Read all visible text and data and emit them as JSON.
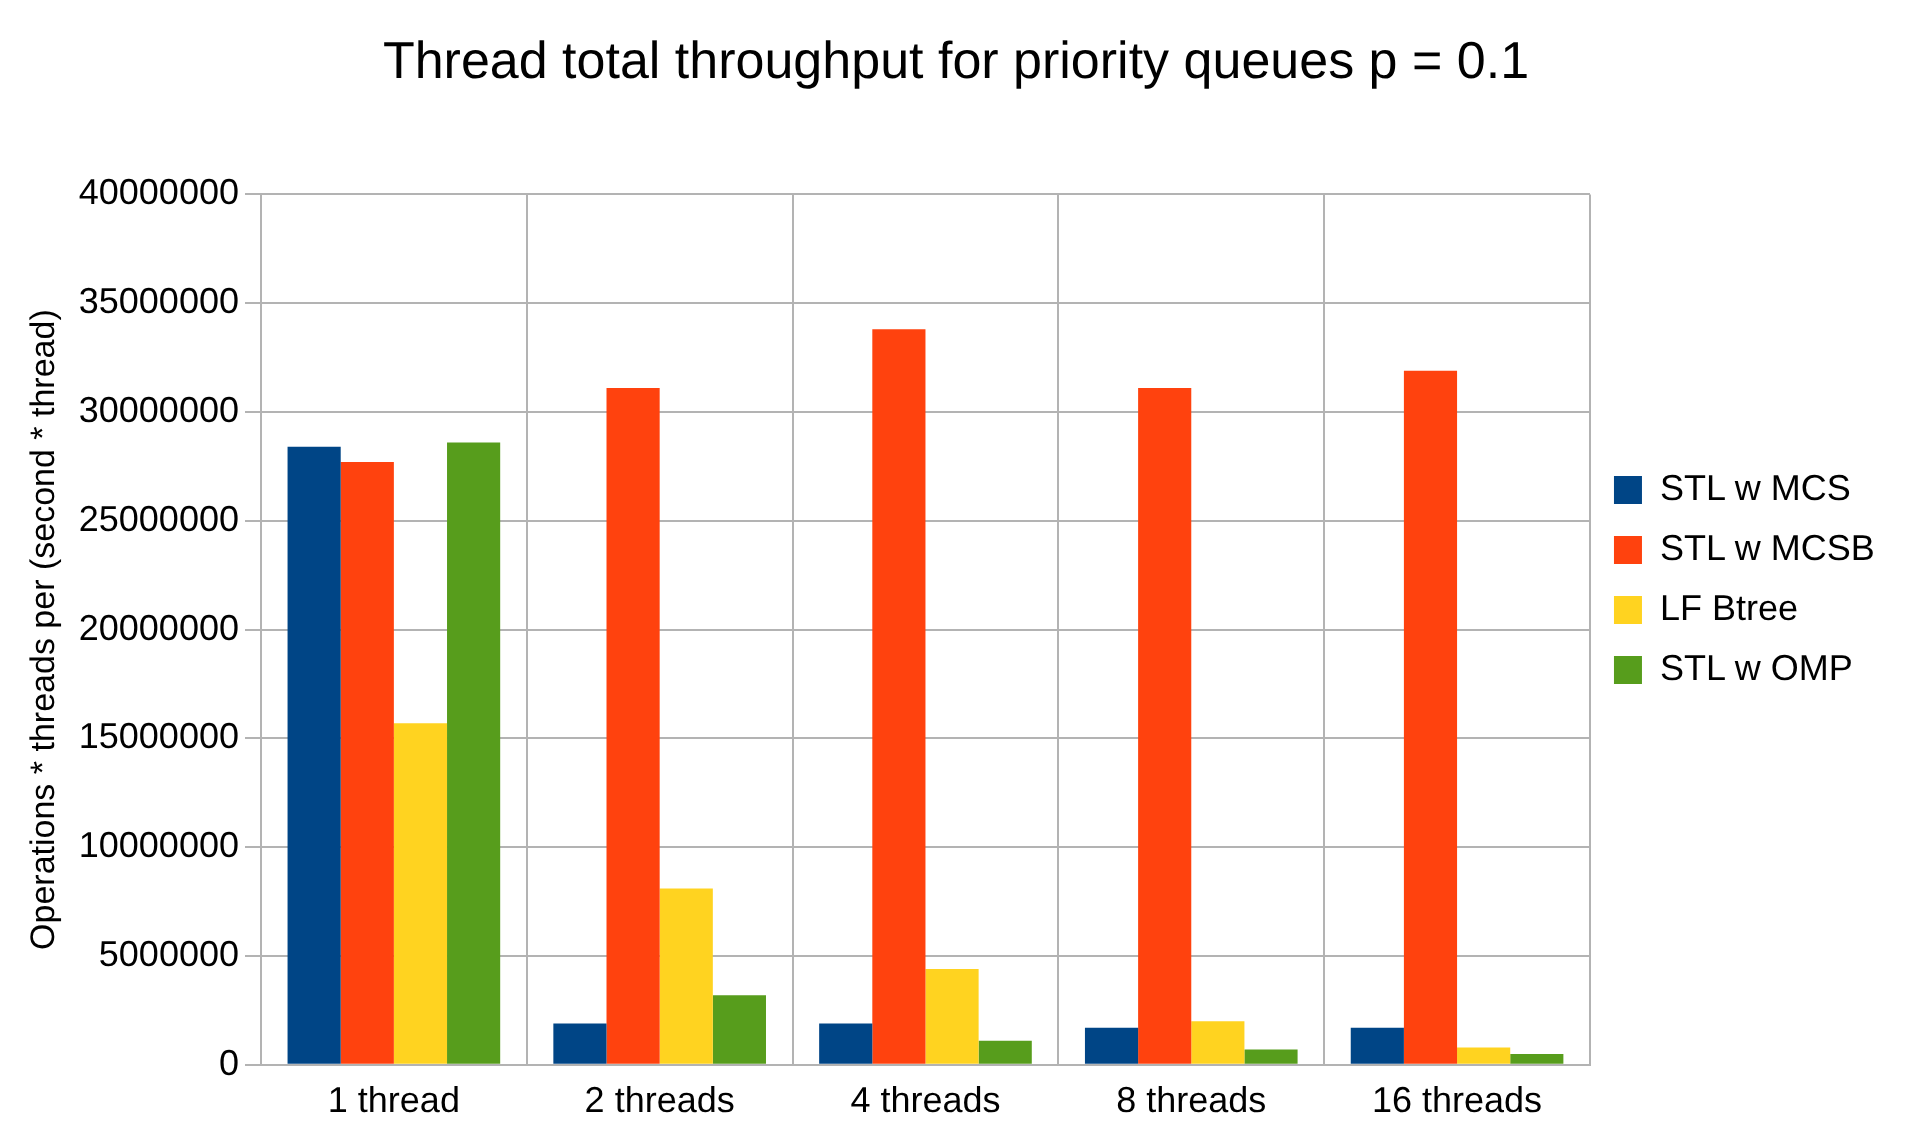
{
  "chart_data": {
    "type": "bar",
    "title": "Thread total throughput for priority queues p = 0.1",
    "ylabel": "Operations * threads per (second * thread)",
    "categories": [
      "1 thread",
      "2 threads",
      "4 threads",
      "8 threads",
      "16 threads"
    ],
    "series": [
      {
        "name": "STL w MCS",
        "color": "#004586",
        "values": [
          28400000,
          1900000,
          1900000,
          1700000,
          1700000
        ]
      },
      {
        "name": "STL w MCSB",
        "color": "#ff420e",
        "values": [
          27700000,
          31100000,
          33800000,
          31100000,
          31900000
        ]
      },
      {
        "name": "LF Btree",
        "color": "#ffd320",
        "values": [
          15700000,
          8100000,
          4400000,
          2000000,
          800000
        ]
      },
      {
        "name": "STL w OMP",
        "color": "#579d1c",
        "values": [
          28600000,
          3200000,
          1100000,
          700000,
          500000
        ]
      }
    ],
    "ylim": [
      0,
      40000000
    ],
    "yticks": [
      0,
      5000000,
      10000000,
      15000000,
      20000000,
      25000000,
      30000000,
      35000000,
      40000000
    ],
    "grid": true,
    "legend": "right"
  }
}
